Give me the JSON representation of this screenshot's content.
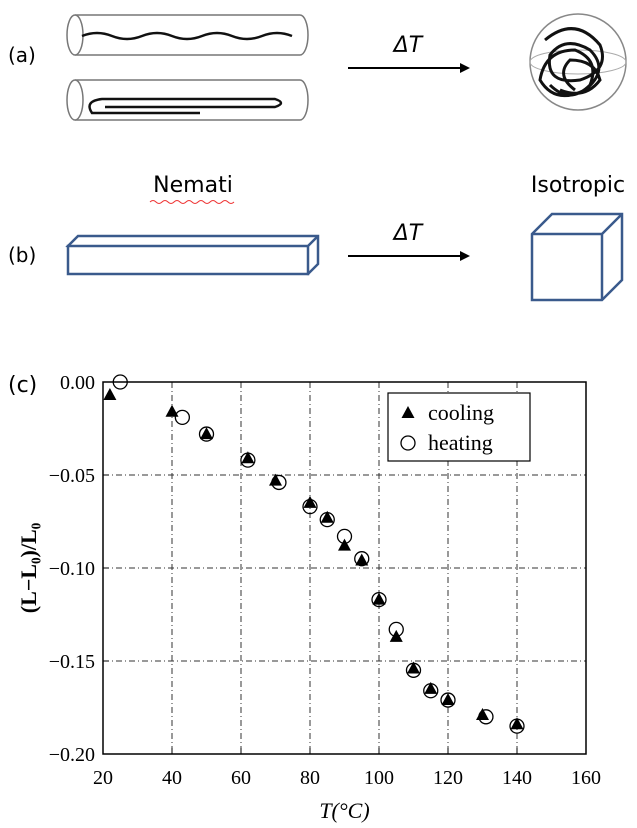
{
  "panel_a": {
    "label": "(a)",
    "arrow_label": "ΔT"
  },
  "panel_b": {
    "label": "(b)",
    "arrow_label": "ΔT",
    "left_caption": "Nemati",
    "right_caption": "Isotropic"
  },
  "panel_c": {
    "label": "(c)"
  },
  "chart_data": {
    "type": "scatter",
    "x_label": "T(°C)",
    "y_label": "(L−L₀)/L₀",
    "xlim": [
      20,
      160
    ],
    "ylim": [
      -0.2,
      0
    ],
    "xticks": [
      20,
      40,
      60,
      80,
      100,
      120,
      140,
      160
    ],
    "yticks": [
      {
        "value": 0,
        "label": "0.00"
      },
      {
        "value": -0.05,
        "label": "−0.05"
      },
      {
        "value": -0.1,
        "label": "−0.10"
      },
      {
        "value": -0.15,
        "label": "−0.15"
      },
      {
        "value": -0.2,
        "label": "−0.20"
      }
    ],
    "grid": true,
    "legend": "upper right",
    "series": [
      {
        "name": "cooling",
        "marker": "triangle",
        "color": "#000000",
        "x": [
          22,
          40,
          50,
          62,
          70,
          80,
          85,
          90,
          95,
          100,
          105,
          110,
          115,
          120,
          130,
          140
        ],
        "values": [
          -0.007,
          -0.016,
          -0.028,
          -0.041,
          -0.053,
          -0.065,
          -0.073,
          -0.088,
          -0.096,
          -0.117,
          -0.137,
          -0.154,
          -0.165,
          -0.171,
          -0.179,
          -0.184
        ]
      },
      {
        "name": "heating",
        "marker": "circle",
        "color": "#000000",
        "x": [
          25,
          43,
          50,
          62,
          71,
          80,
          85,
          90,
          95,
          100,
          105,
          110,
          115,
          120,
          131,
          140
        ],
        "values": [
          0.0,
          -0.019,
          -0.028,
          -0.042,
          -0.054,
          -0.067,
          -0.074,
          -0.083,
          -0.095,
          -0.117,
          -0.133,
          -0.155,
          -0.166,
          -0.171,
          -0.18,
          -0.185
        ]
      }
    ]
  }
}
